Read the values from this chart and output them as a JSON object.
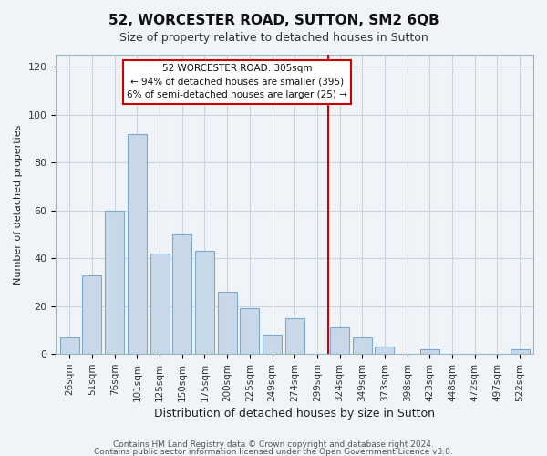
{
  "title": "52, WORCESTER ROAD, SUTTON, SM2 6QB",
  "subtitle": "Size of property relative to detached houses in Sutton",
  "xlabel": "Distribution of detached houses by size in Sutton",
  "ylabel": "Number of detached properties",
  "bar_labels": [
    "26sqm",
    "51sqm",
    "76sqm",
    "101sqm",
    "125sqm",
    "150sqm",
    "175sqm",
    "200sqm",
    "225sqm",
    "249sqm",
    "274sqm",
    "299sqm",
    "324sqm",
    "349sqm",
    "373sqm",
    "398sqm",
    "423sqm",
    "448sqm",
    "472sqm",
    "497sqm",
    "522sqm"
  ],
  "bar_values": [
    7,
    33,
    60,
    92,
    42,
    50,
    43,
    26,
    19,
    8,
    15,
    0,
    11,
    7,
    3,
    0,
    2,
    0,
    0,
    0,
    2
  ],
  "bar_color": "#c8d8e8",
  "bar_edgecolor": "#7aabcf",
  "vline_color": "#cc0000",
  "vline_x_index": 11.5,
  "ylim": [
    0,
    125
  ],
  "yticks": [
    0,
    20,
    40,
    60,
    80,
    100,
    120
  ],
  "annotation_title": "52 WORCESTER ROAD: 305sqm",
  "annotation_line1": "← 94% of detached houses are smaller (395)",
  "annotation_line2": "6% of semi-detached houses are larger (25) →",
  "footer1": "Contains HM Land Registry data © Crown copyright and database right 2024.",
  "footer2": "Contains public sector information licensed under the Open Government Licence v3.0.",
  "background_color": "#f0f4f8",
  "grid_color": "#c8d4e0",
  "title_fontsize": 11,
  "subtitle_fontsize": 9,
  "xlabel_fontsize": 9,
  "ylabel_fontsize": 8,
  "tick_fontsize": 7.5,
  "footer_fontsize": 6.5
}
